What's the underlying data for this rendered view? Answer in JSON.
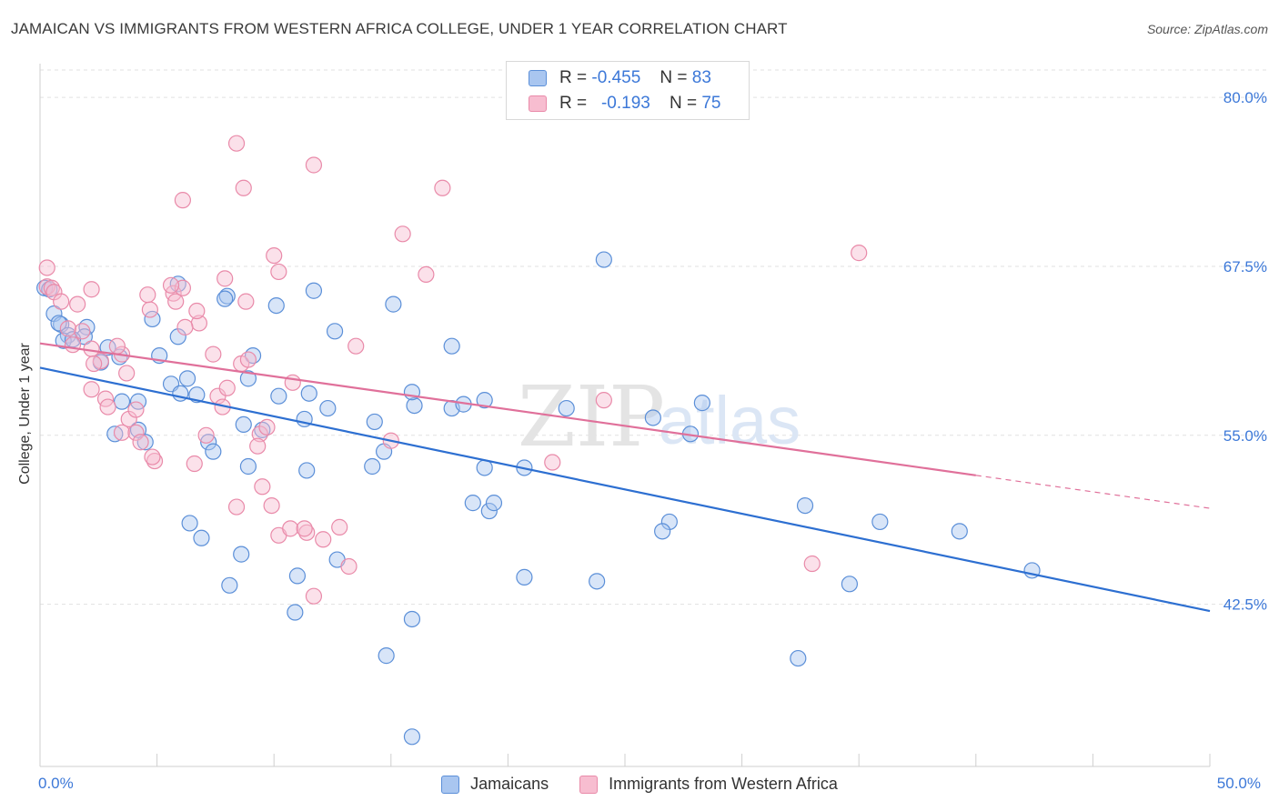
{
  "title": "JAMAICAN VS IMMIGRANTS FROM WESTERN AFRICA COLLEGE, UNDER 1 YEAR CORRELATION CHART",
  "source": "Source: ZipAtlas.com",
  "watermark": {
    "zip": "ZIP",
    "atlas": "atlas"
  },
  "legend": {
    "r_label": "R =",
    "n_label": "N =",
    "rows": [
      {
        "r": "-0.455",
        "n": "83"
      },
      {
        "r": "-0.193",
        "n": "75"
      }
    ]
  },
  "x_axis": {
    "left_label": "0.0%",
    "right_label": "50.0%"
  },
  "colors": {
    "blue_fill": "#a9c6f0",
    "blue_stroke": "#5b8fd8",
    "blue_line": "#2d6fd1",
    "pink_fill": "#f7bdd0",
    "pink_stroke": "#e98aa9",
    "pink_line": "#e0709a",
    "axis_text": "#3c78d8",
    "grid": "#e1e1e1"
  },
  "chart_data": {
    "type": "scatter",
    "title": "JAMAICAN VS IMMIGRANTS FROM WESTERN AFRICA COLLEGE, UNDER 1 YEAR CORRELATION CHART",
    "xlabel": "",
    "ylabel": "College, Under 1 year",
    "xlim": [
      0,
      50
    ],
    "ylim": [
      30.5,
      82.5
    ],
    "y_ticks": [
      {
        "value": 42.5,
        "label": "42.5%"
      },
      {
        "value": 55.0,
        "label": "55.0%"
      },
      {
        "value": 67.5,
        "label": "67.5%"
      },
      {
        "value": 80.0,
        "label": "80.0%"
      }
    ],
    "x_ticks": [
      0,
      5,
      10,
      15,
      20,
      25,
      30,
      35,
      40,
      45,
      50
    ],
    "grid": true,
    "legend_placement": "bottom",
    "series": [
      {
        "name": "Jamaicans",
        "color": "#5b8fd8",
        "trend": {
          "x0": 0,
          "y0": 60.0,
          "x1": 50,
          "y1": 42.0,
          "dash_from": null
        },
        "points": [
          [
            0.2,
            65.9
          ],
          [
            0.4,
            65.8
          ],
          [
            0.6,
            64.0
          ],
          [
            0.9,
            63.2
          ],
          [
            1.2,
            62.4
          ],
          [
            1.0,
            62.0
          ],
          [
            0.8,
            63.3
          ],
          [
            2.0,
            63.0
          ],
          [
            1.9,
            62.3
          ],
          [
            1.4,
            62.1
          ],
          [
            2.9,
            61.5
          ],
          [
            3.4,
            60.8
          ],
          [
            2.6,
            60.4
          ],
          [
            3.5,
            57.5
          ],
          [
            4.2,
            57.5
          ],
          [
            5.6,
            58.8
          ],
          [
            6.0,
            58.1
          ],
          [
            6.7,
            58.0
          ],
          [
            7.2,
            54.5
          ],
          [
            4.5,
            54.5
          ],
          [
            3.2,
            55.1
          ],
          [
            4.2,
            55.4
          ],
          [
            5.9,
            62.3
          ],
          [
            4.8,
            63.6
          ],
          [
            5.1,
            60.9
          ],
          [
            5.9,
            66.2
          ],
          [
            6.3,
            59.2
          ],
          [
            8.0,
            65.3
          ],
          [
            7.9,
            65.1
          ],
          [
            9.1,
            60.9
          ],
          [
            8.9,
            59.2
          ],
          [
            10.2,
            57.9
          ],
          [
            9.5,
            55.4
          ],
          [
            8.7,
            55.8
          ],
          [
            7.4,
            53.8
          ],
          [
            8.9,
            52.7
          ],
          [
            11.3,
            56.2
          ],
          [
            12.3,
            57.0
          ],
          [
            11.5,
            58.1
          ],
          [
            11.7,
            65.7
          ],
          [
            10.1,
            64.6
          ],
          [
            12.6,
            62.7
          ],
          [
            14.3,
            56.0
          ],
          [
            14.7,
            53.8
          ],
          [
            14.2,
            52.7
          ],
          [
            15.1,
            64.7
          ],
          [
            16.0,
            57.2
          ],
          [
            17.6,
            61.6
          ],
          [
            17.6,
            57.0
          ],
          [
            15.9,
            58.2
          ],
          [
            19.0,
            52.6
          ],
          [
            18.1,
            57.3
          ],
          [
            19.0,
            57.6
          ],
          [
            18.5,
            50.0
          ],
          [
            19.2,
            49.4
          ],
          [
            19.4,
            50.0
          ],
          [
            20.7,
            52.6
          ],
          [
            22.5,
            57.0
          ],
          [
            24.1,
            68.0
          ],
          [
            26.2,
            56.3
          ],
          [
            28.3,
            57.4
          ],
          [
            27.8,
            55.1
          ],
          [
            26.9,
            48.6
          ],
          [
            26.6,
            47.9
          ],
          [
            32.7,
            49.8
          ],
          [
            34.6,
            44.0
          ],
          [
            35.9,
            48.6
          ],
          [
            32.4,
            38.5
          ],
          [
            23.8,
            44.2
          ],
          [
            20.7,
            44.5
          ],
          [
            15.9,
            41.4
          ],
          [
            14.8,
            38.7
          ],
          [
            10.9,
            41.9
          ],
          [
            11.0,
            44.6
          ],
          [
            12.7,
            45.8
          ],
          [
            8.6,
            46.2
          ],
          [
            8.1,
            43.9
          ],
          [
            6.4,
            48.5
          ],
          [
            6.9,
            47.4
          ],
          [
            39.3,
            47.9
          ],
          [
            42.4,
            45.0
          ],
          [
            15.9,
            32.7
          ],
          [
            11.4,
            52.4
          ]
        ]
      },
      {
        "name": "Immigrants from Western Africa",
        "color": "#e98aa9",
        "trend": {
          "x0": 0,
          "y0": 61.8,
          "x1": 50,
          "y1": 49.6,
          "dash_from": 40
        },
        "points": [
          [
            0.3,
            67.4
          ],
          [
            0.3,
            66.0
          ],
          [
            0.5,
            65.9
          ],
          [
            0.6,
            65.6
          ],
          [
            0.9,
            64.9
          ],
          [
            1.6,
            64.7
          ],
          [
            1.8,
            62.7
          ],
          [
            1.2,
            62.9
          ],
          [
            1.4,
            61.7
          ],
          [
            2.2,
            61.4
          ],
          [
            2.6,
            60.5
          ],
          [
            2.3,
            60.3
          ],
          [
            2.2,
            58.4
          ],
          [
            3.5,
            61.0
          ],
          [
            3.3,
            61.6
          ],
          [
            2.8,
            57.7
          ],
          [
            2.9,
            57.1
          ],
          [
            3.8,
            56.2
          ],
          [
            3.5,
            55.2
          ],
          [
            4.1,
            55.2
          ],
          [
            4.9,
            53.1
          ],
          [
            4.3,
            54.5
          ],
          [
            5.7,
            65.5
          ],
          [
            5.8,
            64.9
          ],
          [
            4.7,
            64.3
          ],
          [
            6.1,
            65.9
          ],
          [
            5.6,
            66.1
          ],
          [
            6.8,
            63.3
          ],
          [
            6.2,
            63.0
          ],
          [
            7.4,
            61.0
          ],
          [
            7.6,
            57.9
          ],
          [
            8.0,
            58.5
          ],
          [
            8.6,
            60.3
          ],
          [
            7.8,
            57.1
          ],
          [
            7.1,
            55.0
          ],
          [
            6.6,
            52.9
          ],
          [
            8.9,
            60.6
          ],
          [
            9.4,
            55.1
          ],
          [
            9.3,
            54.2
          ],
          [
            9.5,
            51.2
          ],
          [
            8.4,
            49.7
          ],
          [
            9.9,
            49.8
          ],
          [
            10.2,
            47.6
          ],
          [
            10.7,
            48.1
          ],
          [
            11.4,
            47.8
          ],
          [
            12.1,
            47.3
          ],
          [
            11.3,
            48.1
          ],
          [
            11.7,
            43.1
          ],
          [
            12.8,
            48.2
          ],
          [
            13.2,
            45.3
          ],
          [
            6.1,
            72.4
          ],
          [
            8.4,
            76.6
          ],
          [
            8.7,
            73.3
          ],
          [
            11.7,
            75.0
          ],
          [
            10.2,
            67.1
          ],
          [
            10.0,
            68.3
          ],
          [
            17.2,
            73.3
          ],
          [
            16.5,
            66.9
          ],
          [
            15.5,
            69.9
          ],
          [
            13.5,
            61.6
          ],
          [
            15.0,
            54.6
          ],
          [
            21.9,
            53.0
          ],
          [
            24.1,
            57.6
          ],
          [
            33.0,
            45.5
          ],
          [
            35.0,
            68.5
          ],
          [
            8.8,
            64.9
          ],
          [
            4.1,
            56.9
          ],
          [
            3.7,
            59.6
          ],
          [
            4.8,
            53.4
          ],
          [
            6.7,
            64.2
          ],
          [
            2.2,
            65.8
          ],
          [
            4.6,
            65.4
          ],
          [
            7.9,
            66.6
          ],
          [
            10.8,
            58.9
          ],
          [
            9.7,
            55.6
          ]
        ]
      }
    ]
  }
}
